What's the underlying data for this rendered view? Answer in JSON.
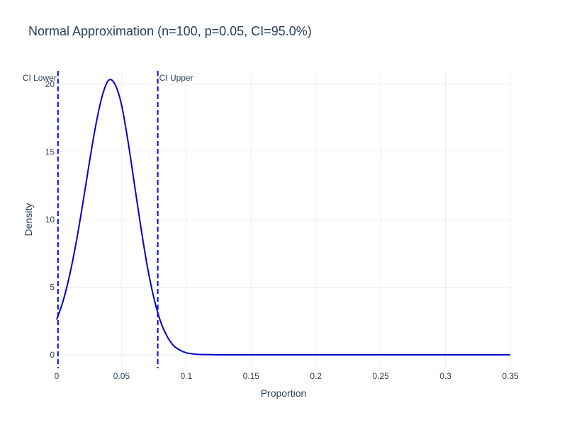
{
  "chart_data": {
    "type": "line",
    "title": "Normal Approximation (n=100, p=0.05, CI=95.0%)",
    "xlabel": "Proportion",
    "ylabel": "Density",
    "xlim": [
      0,
      0.35
    ],
    "ylim": [
      -1,
      21
    ],
    "x_ticks": [
      0,
      0.05,
      0.1,
      0.15,
      0.2,
      0.25,
      0.3,
      0.35
    ],
    "x_tick_labels": [
      "0",
      "0.05",
      "0.1",
      "0.15",
      "0.2",
      "0.25",
      "0.3",
      "0.35"
    ],
    "y_ticks": [
      0,
      5,
      10,
      15,
      20
    ],
    "y_tick_labels": [
      "0",
      "5",
      "10",
      "15",
      "20"
    ],
    "grid": true,
    "series": [
      {
        "color": "#0000cd",
        "x": [
          0,
          0.005,
          0.01,
          0.015,
          0.02,
          0.025,
          0.03,
          0.035,
          0.04,
          0.045,
          0.05,
          0.055,
          0.06,
          0.065,
          0.07,
          0.075,
          0.08,
          0.085,
          0.09,
          0.095,
          0.1,
          0.105,
          0.11,
          0.12,
          0.13,
          0.15,
          0.2,
          0.25,
          0.3,
          0.35
        ],
        "y": [
          2.6,
          4.0,
          5.9,
          8.3,
          11.1,
          14.1,
          16.9,
          19.1,
          20.3,
          20.0,
          18.5,
          15.8,
          12.6,
          9.4,
          6.5,
          4.2,
          2.5,
          1.4,
          0.7,
          0.35,
          0.15,
          0.07,
          0.03,
          0.01,
          0.0,
          0.0,
          0.0,
          0.0,
          0.0,
          0.0
        ]
      }
    ],
    "vlines": [
      {
        "label": "CI Lower",
        "x": 0.001,
        "color": "#0000ff",
        "dash": "dashed",
        "label_side": "left"
      },
      {
        "label": "CI Upper",
        "x": 0.078,
        "color": "#0000ff",
        "dash": "dashed",
        "label_side": "right"
      }
    ]
  }
}
